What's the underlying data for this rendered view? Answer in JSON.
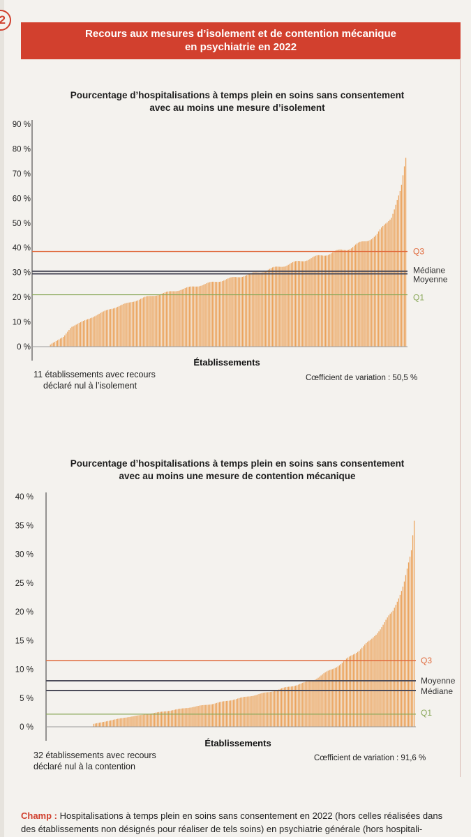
{
  "header": {
    "badge": "2",
    "title_line1": "Recours aux mesures d’isolement et de contention mécanique",
    "title_line2": "en psychiatrie en 2022"
  },
  "chart_data": [
    {
      "type": "bar",
      "title_line1": "Pourcentage d’hospitalisations à temps plein en soins sans consentement",
      "title_line2": "avec au moins une mesure d’isolement",
      "xlabel": "Établissements",
      "ylim": [
        0,
        90
      ],
      "yticks": [
        0,
        10,
        20,
        30,
        40,
        50,
        60,
        70,
        80,
        90
      ],
      "ytick_labels": [
        "0 %",
        "10 %",
        "20 %",
        "30 %",
        "40 %",
        "50 %",
        "60 %",
        "70 %",
        "80 %",
        "90 %"
      ],
      "bar_count": 260,
      "zero_count": 11,
      "sorted_profile": [
        [
          0,
          0
        ],
        [
          0.04,
          0
        ],
        [
          0.045,
          1
        ],
        [
          0.08,
          4
        ],
        [
          0.1,
          8
        ],
        [
          0.2,
          15
        ],
        [
          0.3,
          20
        ],
        [
          0.45,
          25
        ],
        [
          0.6,
          30
        ],
        [
          0.75,
          36
        ],
        [
          0.85,
          40
        ],
        [
          0.92,
          45
        ],
        [
          0.96,
          53
        ],
        [
          0.985,
          63
        ],
        [
          1.0,
          78
        ]
      ],
      "reference_lines": [
        {
          "name": "Q3",
          "value": 38.5,
          "color": "#e06a3c"
        },
        {
          "name": "Médiane",
          "value": 30.5,
          "color": "#4b4b59"
        },
        {
          "name": "Moyenne",
          "value": 29.5,
          "color": "#4b4b59"
        },
        {
          "name": "Q1",
          "value": 21.0,
          "color": "#8aa85a"
        }
      ],
      "label_stack": [
        "Q3",
        "Médiane",
        "Moyenne",
        "Q1"
      ],
      "note_line1": "11 établissements avec recours",
      "note_line2": "déclaré nul à l’isolement",
      "coefficient": "Cœfficient de variation : 50,5 %"
    },
    {
      "type": "bar",
      "title_line1": "Pourcentage d’hospitalisations à temps plein en soins sans consentement",
      "title_line2": "avec au moins une mesure de contention mécanique",
      "xlabel": "Établissements",
      "ylim": [
        0,
        40
      ],
      "yticks": [
        0,
        5,
        10,
        15,
        20,
        25,
        30,
        35,
        40
      ],
      "ytick_labels": [
        "0 %",
        "5 %",
        "10 %",
        "15 %",
        "20 %",
        "25 %",
        "30 %",
        "35 %",
        "40 %"
      ],
      "bar_count": 260,
      "zero_count": 32,
      "sorted_profile": [
        [
          0,
          0
        ],
        [
          0.12,
          0
        ],
        [
          0.125,
          0.5
        ],
        [
          0.2,
          1.5
        ],
        [
          0.3,
          2.5
        ],
        [
          0.45,
          4
        ],
        [
          0.6,
          6
        ],
        [
          0.72,
          8
        ],
        [
          0.8,
          11
        ],
        [
          0.88,
          15
        ],
        [
          0.94,
          20
        ],
        [
          0.97,
          25
        ],
        [
          0.99,
          30
        ],
        [
          1.0,
          37
        ]
      ],
      "reference_lines": [
        {
          "name": "Q3",
          "value": 11.5,
          "color": "#e06a3c"
        },
        {
          "name": "Moyenne",
          "value": 8.0,
          "color": "#4b4b59"
        },
        {
          "name": "Médiane",
          "value": 6.3,
          "color": "#4b4b59"
        },
        {
          "name": "Q1",
          "value": 2.2,
          "color": "#8aa85a"
        }
      ],
      "label_stack": [
        "Q3",
        "Moyenne",
        "Médiane",
        "Q1"
      ],
      "note_line1": "32 établissements avec recours",
      "note_line2": "déclaré nul à la contention",
      "coefficient": "Cœfficient de variation : 91,6 %"
    }
  ],
  "footer": {
    "champ_label": "Champ :",
    "text_line1": " Hospitalisations à temps plein en soins sans consentement en 2022 (hors celles réalisées dans",
    "text_line2": "des établissements non désignés pour réaliser de tels soins) en psychiatrie générale (hors hospitali-"
  },
  "colors": {
    "accent_red": "#d2402e",
    "bars": "#eba25a",
    "q3": "#e06a3c",
    "median_mean": "#4b4b59",
    "q1": "#8aa85a"
  }
}
